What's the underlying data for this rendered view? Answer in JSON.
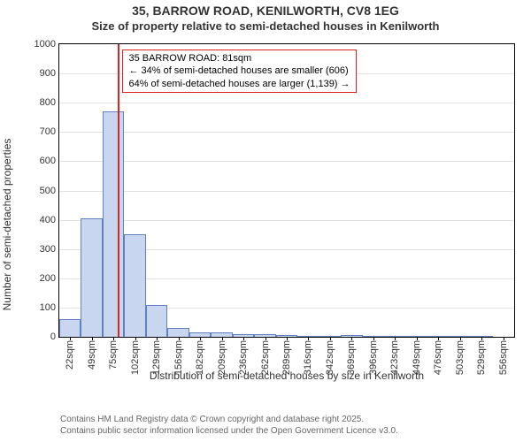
{
  "titles": {
    "line1": "35, BARROW ROAD, KENILWORTH, CV8 1EG",
    "line2": "Size of property relative to semi-detached houses in Kenilworth"
  },
  "chart": {
    "type": "histogram",
    "ylabel": "Number of semi-detached properties",
    "ylim": [
      0,
      1000
    ],
    "ytick_step": 100,
    "yticks": [
      0,
      100,
      200,
      300,
      400,
      500,
      600,
      700,
      800,
      900,
      1000
    ],
    "xlabel": "Distribution of semi-detached houses by size in Kenilworth",
    "xticks": [
      "22sqm",
      "49sqm",
      "75sqm",
      "102sqm",
      "129sqm",
      "156sqm",
      "182sqm",
      "209sqm",
      "236sqm",
      "262sqm",
      "289sqm",
      "316sqm",
      "342sqm",
      "369sqm",
      "396sqm",
      "423sqm",
      "449sqm",
      "476sqm",
      "503sqm",
      "529sqm",
      "556sqm"
    ],
    "bar_values": [
      60,
      405,
      770,
      350,
      110,
      30,
      15,
      15,
      10,
      8,
      5,
      3,
      3,
      5,
      2,
      0,
      0,
      0,
      0,
      0
    ],
    "bar_fill": "#c9d6f0",
    "bar_stroke": "#6080c0",
    "grid_color": "#e0e0e0",
    "background": "#ffffff"
  },
  "marker": {
    "position_sqm": 81,
    "color": "#dd2222",
    "label1": "35 BARROW ROAD: 81sqm",
    "label2": "← 34% of semi-detached houses are smaller (606)",
    "label3": "64% of semi-detached houses are larger (1,139) →",
    "box_border": "#dd2222"
  },
  "footer": {
    "line1": "Contains HM Land Registry data © Crown copyright and database right 2025.",
    "line2": "Contains public sector information licensed under the Open Government Licence v3.0."
  }
}
